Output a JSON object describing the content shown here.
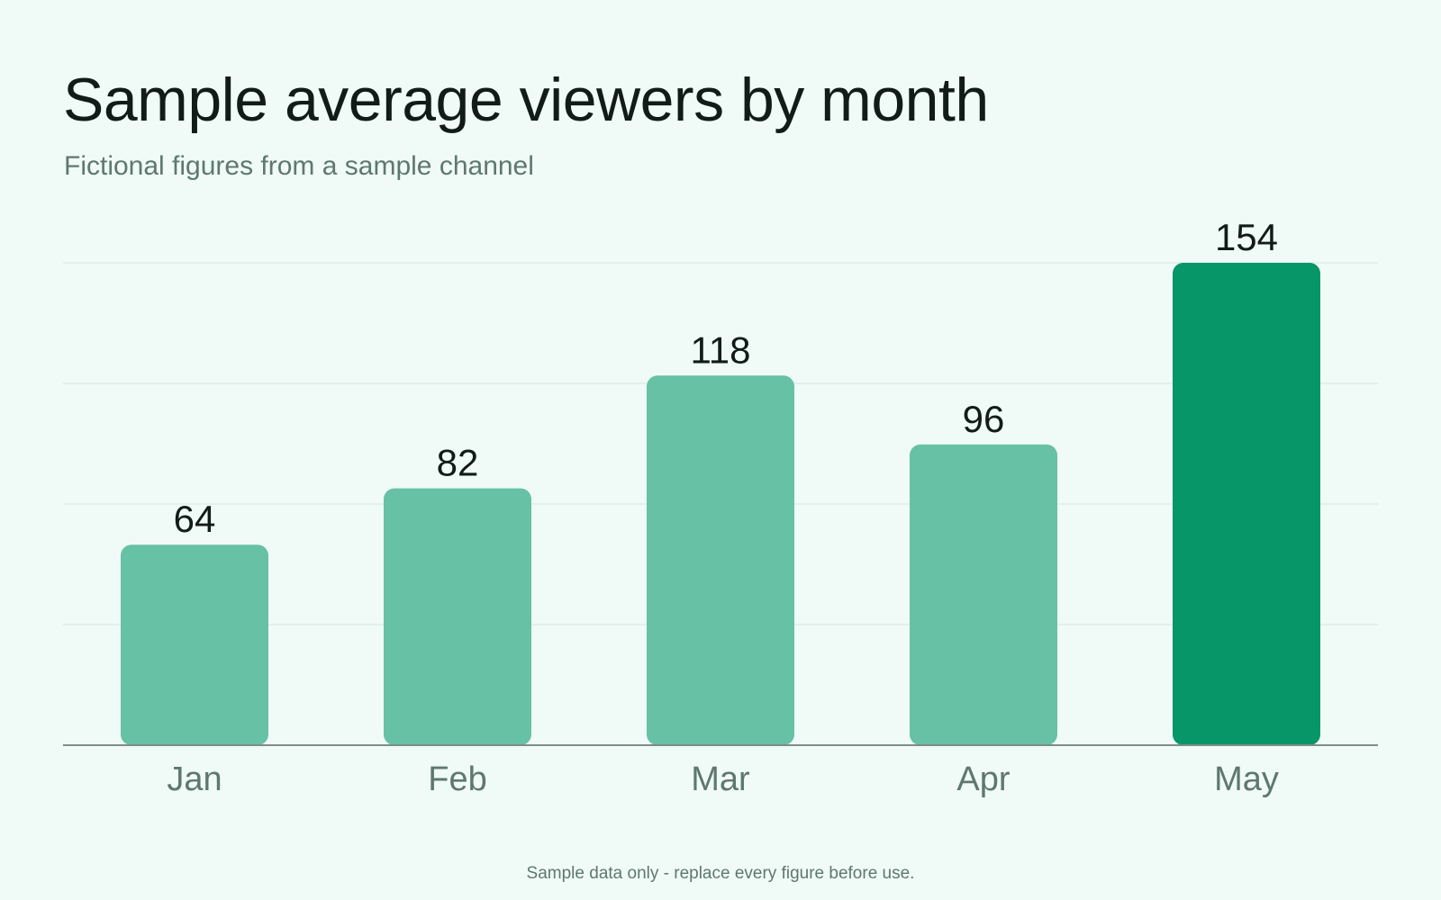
{
  "header": {
    "title": "Sample average viewers by month",
    "subtitle": "Fictional figures from a sample channel"
  },
  "footnote": "Sample data only - replace every figure before use.",
  "colors": {
    "background": "#F0FAF6",
    "bar": "#67C1A5",
    "bar_highlight": "#069668",
    "gridline": "#D6E6E0",
    "axis": "#7E8D89",
    "value_label": "#111B18",
    "category_label": "#5E7870"
  },
  "chart_data": {
    "type": "bar",
    "categories": [
      "Jan",
      "Feb",
      "Mar",
      "Apr",
      "May"
    ],
    "values": [
      64,
      82,
      118,
      96,
      154
    ],
    "highlight_category": "May",
    "title": "Sample average viewers by month",
    "subtitle": "Fictional figures from a sample channel",
    "xlabel": "",
    "ylabel": "",
    "ylim": [
      0,
      154
    ],
    "grid": true,
    "value_labels": true,
    "legend": "none"
  }
}
